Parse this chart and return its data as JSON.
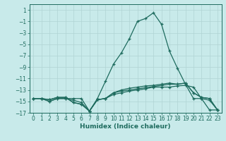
{
  "xlabel": "Humidex (Indice chaleur)",
  "background_color": "#c8eaea",
  "grid_color": "#b0d4d4",
  "line_color": "#1e6b5e",
  "xlim": [
    -0.5,
    23.5
  ],
  "ylim": [
    -17,
    2
  ],
  "yticks": [
    1,
    -1,
    -3,
    -5,
    -7,
    -9,
    -11,
    -13,
    -15,
    -17
  ],
  "xticks": [
    0,
    1,
    2,
    3,
    4,
    5,
    6,
    7,
    8,
    9,
    10,
    11,
    12,
    13,
    14,
    15,
    16,
    17,
    18,
    19,
    20,
    21,
    22,
    23
  ],
  "series": [
    [
      -14.5,
      -14.5,
      -15.0,
      -14.5,
      -14.5,
      -14.5,
      -14.5,
      -16.7,
      -14.5,
      -11.5,
      -8.5,
      -6.5,
      -4.0,
      -1.0,
      -0.5,
      0.5,
      -1.5,
      -6.2,
      -9.2,
      -12.0,
      -14.5,
      -14.5,
      -16.5,
      -16.5
    ],
    [
      -14.5,
      -14.5,
      -14.7,
      -14.3,
      -14.3,
      -15.2,
      -15.5,
      -16.7,
      -14.7,
      -14.5,
      -13.5,
      -13.0,
      -12.7,
      -12.5,
      -12.3,
      -12.2,
      -12.0,
      -11.8,
      -12.0,
      -11.8,
      -13.5,
      -14.3,
      -14.5,
      -16.5
    ],
    [
      -14.5,
      -14.5,
      -14.7,
      -14.3,
      -14.3,
      -15.2,
      -15.5,
      -16.7,
      -14.7,
      -14.5,
      -13.5,
      -13.2,
      -13.0,
      -12.8,
      -12.6,
      -12.4,
      -12.2,
      -12.0,
      -12.0,
      -11.8,
      -13.5,
      -14.3,
      -14.5,
      -16.5
    ],
    [
      -14.5,
      -14.5,
      -15.0,
      -14.5,
      -14.5,
      -14.8,
      -15.2,
      -16.7,
      -14.7,
      -14.5,
      -13.8,
      -13.5,
      -13.2,
      -13.0,
      -12.8,
      -12.5,
      -12.5,
      -12.5,
      -12.3,
      -12.2,
      -12.5,
      -14.5,
      -14.8,
      -16.5
    ]
  ],
  "xlabel_fontsize": 6.5,
  "tick_fontsize": 5.5,
  "linewidth": 0.9,
  "markersize": 3.0
}
